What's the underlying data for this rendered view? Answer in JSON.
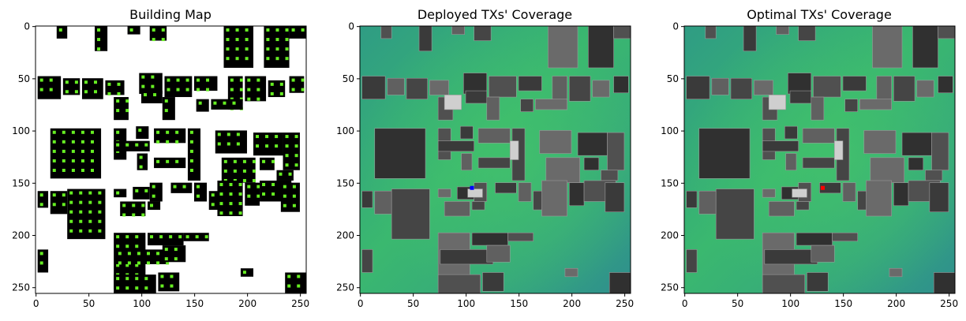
{
  "panels": [
    {
      "id": "building",
      "title": "Building Map",
      "xticks": [
        0,
        50,
        100,
        150,
        200,
        250
      ],
      "yticks": [
        0,
        50,
        100,
        150,
        200,
        250
      ],
      "extent": [
        0,
        255
      ],
      "colors": {
        "background": "#ffffff",
        "building": "#000000",
        "marker": "#66ee22"
      }
    },
    {
      "id": "deployed",
      "title": "Deployed TXs' Coverage",
      "xticks": [
        0,
        50,
        100,
        150,
        200,
        250
      ],
      "yticks": [
        0,
        50,
        100,
        150,
        200,
        250
      ],
      "extent": [
        0,
        255
      ],
      "transmitter": {
        "x": 106,
        "y": 155,
        "color": "#0000ff"
      },
      "colors": {
        "coverage_high": "#3ab86f",
        "coverage_low": "#2e8e8e"
      }
    },
    {
      "id": "optimal",
      "title": "Optimal TXs' Coverage",
      "xticks": [
        0,
        50,
        100,
        150,
        200,
        250
      ],
      "yticks": [
        0,
        50,
        100,
        150,
        200,
        250
      ],
      "extent": [
        0,
        255
      ],
      "transmitter": {
        "x": 131,
        "y": 155,
        "color": "#ff0000"
      },
      "colors": {
        "coverage_high": "#3ab86f",
        "coverage_low": "#2e8e8e"
      }
    }
  ]
}
